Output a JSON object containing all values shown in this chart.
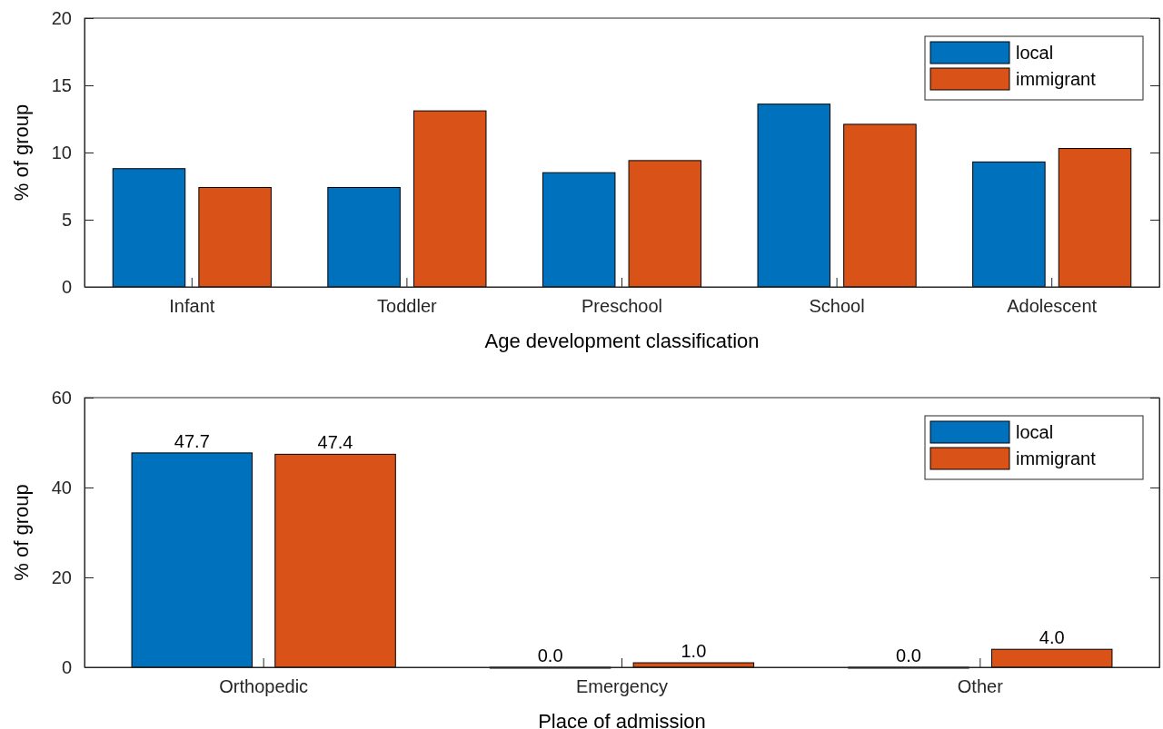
{
  "chart_data": [
    {
      "type": "bar",
      "xlabel": "Age development classification",
      "ylabel": "% of group",
      "categories": [
        "Infant",
        "Toddler",
        "Preschool",
        "School",
        "Adolescent"
      ],
      "series": [
        {
          "name": "local",
          "color": "#0072bd",
          "values": [
            8.8,
            7.4,
            8.5,
            13.6,
            9.3
          ]
        },
        {
          "name": "immigrant",
          "color": "#d95319",
          "values": [
            7.4,
            13.1,
            9.4,
            12.1,
            10.3
          ]
        }
      ],
      "ylim": [
        0,
        20
      ],
      "yticks": [
        0,
        5,
        10,
        15,
        20
      ],
      "grid": false,
      "legend": "top right"
    },
    {
      "type": "bar",
      "xlabel": "Place of admission",
      "ylabel": "% of group",
      "categories": [
        "Orthopedic",
        "Emergency",
        "Other"
      ],
      "series": [
        {
          "name": "local",
          "color": "#0072bd",
          "values": [
            47.7,
            0,
            0
          ],
          "value_labels": [
            "47.7",
            "0.0",
            "0.0"
          ]
        },
        {
          "name": "immigrant",
          "color": "#d95319",
          "values": [
            47.4,
            1,
            4
          ],
          "value_labels": [
            "47.4",
            "1.0",
            "4.0"
          ]
        }
      ],
      "ylim": [
        0,
        60
      ],
      "yticks": [
        0,
        20,
        40,
        60
      ],
      "grid": false,
      "legend": "top right"
    }
  ]
}
